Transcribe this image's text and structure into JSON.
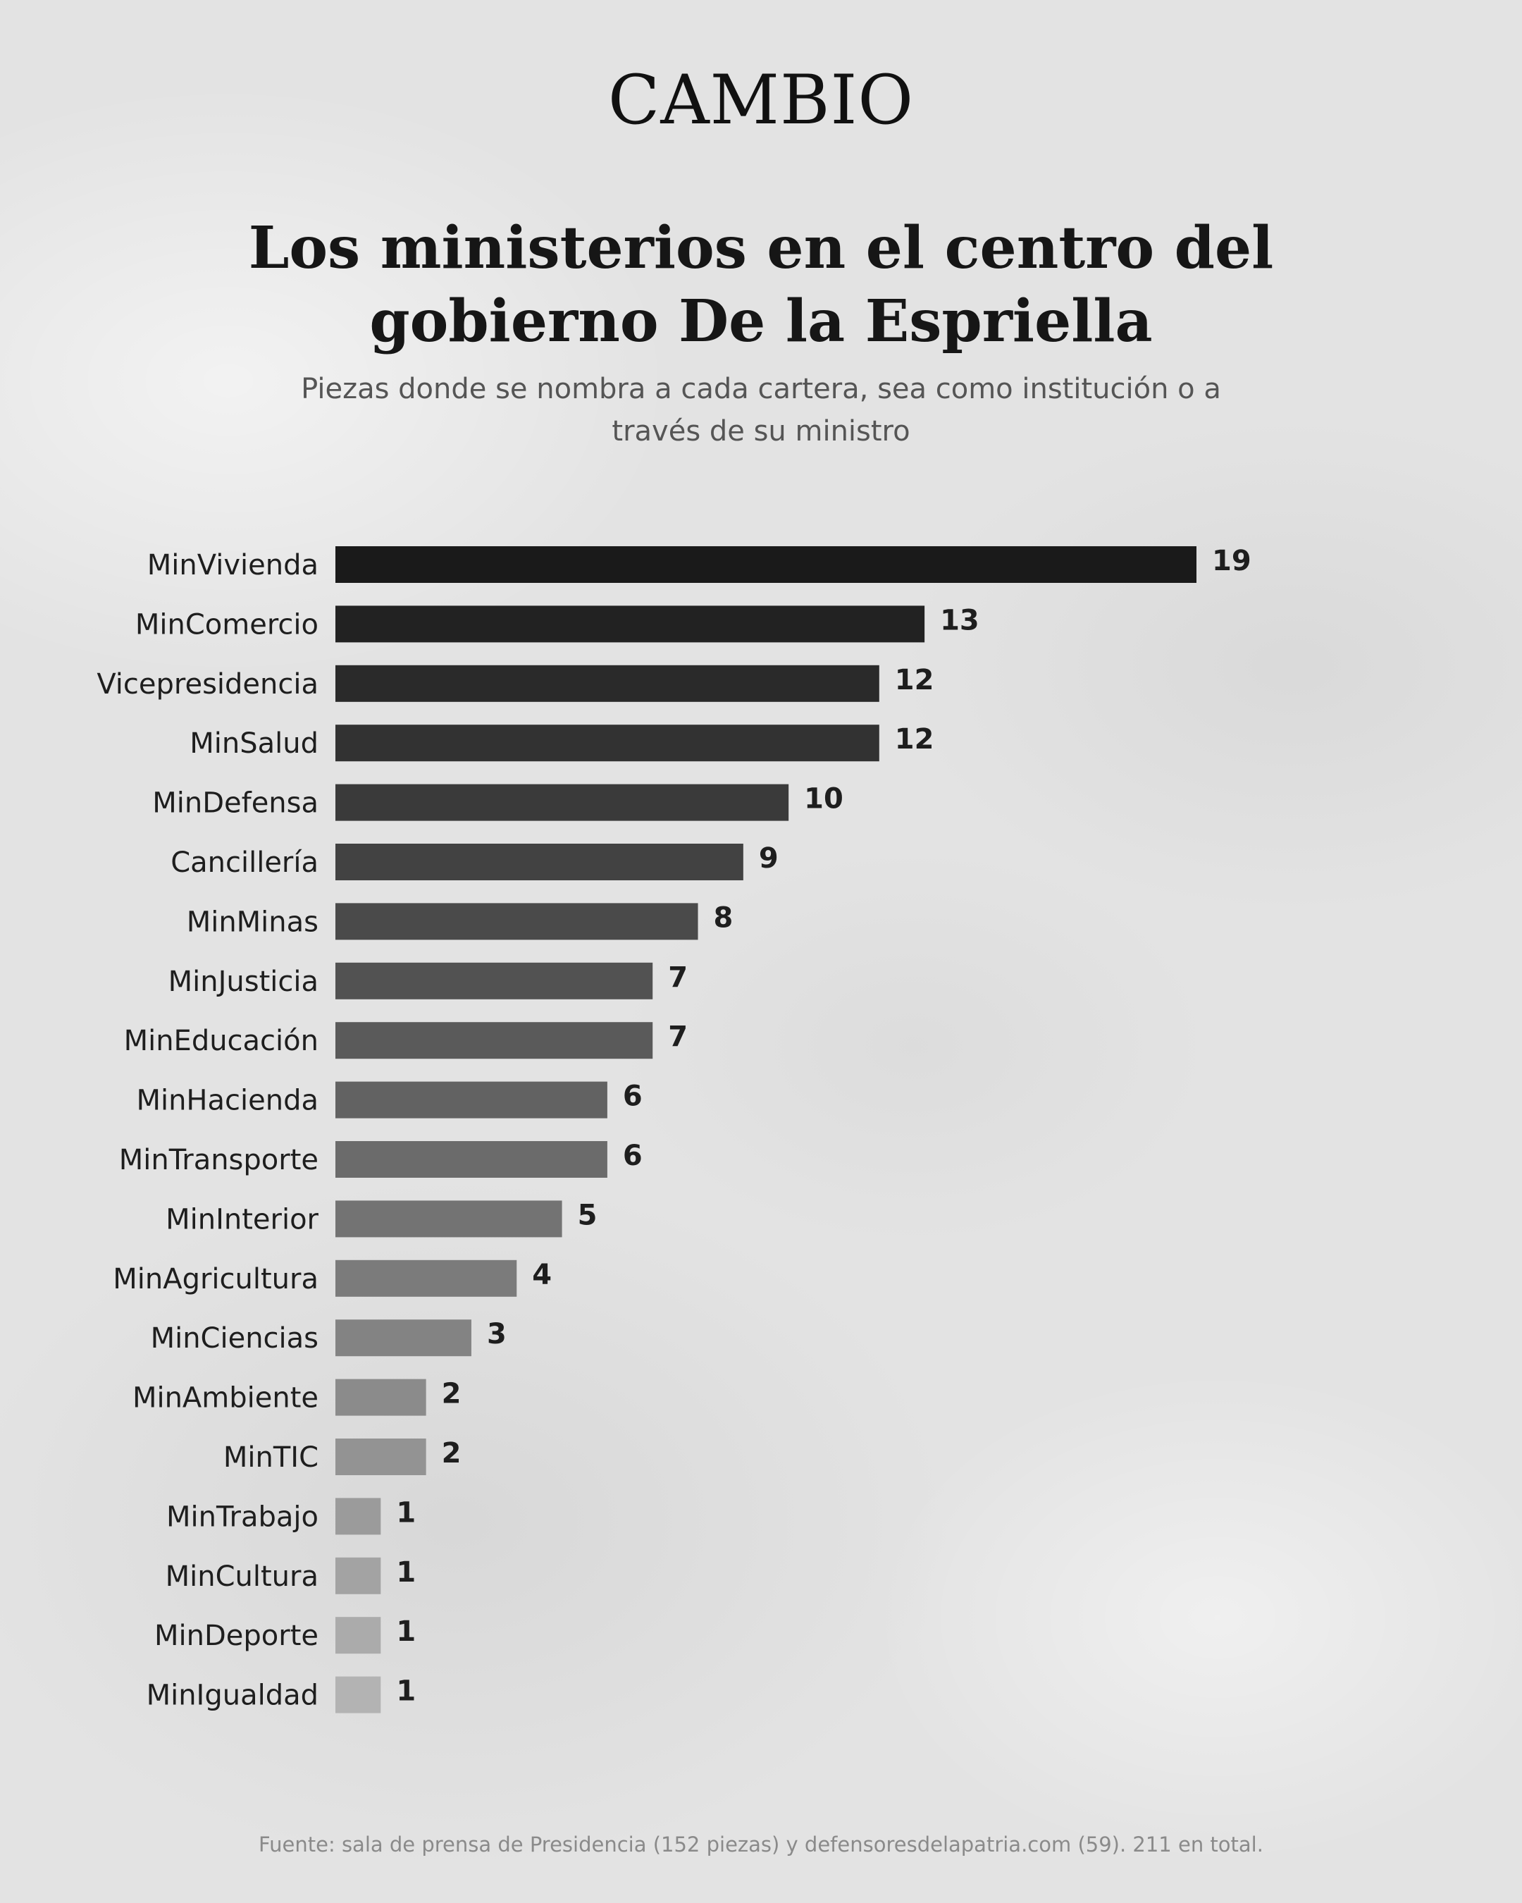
{
  "brand": {
    "logo_text": "CAMBIO"
  },
  "chart_data": {
    "type": "bar",
    "orientation": "horizontal",
    "title": "Los ministerios en el centro del gobierno De la Espriella",
    "title_lines": [
      "Los ministerios en el centro del",
      "gobierno De la Espriella"
    ],
    "subtitle": "Piezas donde se nombra a cada cartera, sea como institución o a través de su ministro",
    "subtitle_lines": [
      "Piezas donde se nombra a cada cartera, sea como institución o a",
      "través de su ministro"
    ],
    "categories": [
      "MinVivienda",
      "MinComercio",
      "Vicepresidencia",
      "MinSalud",
      "MinDefensa",
      "Cancillería",
      "MinMinas",
      "MinJusticia",
      "MinEducación",
      "MinHacienda",
      "MinTransporte",
      "MinInterior",
      "MinAgricultura",
      "MinCiencias",
      "MinAmbiente",
      "MinTIC",
      "MinTrabajo",
      "MinCultura",
      "MinDeporte",
      "MinIgualdad"
    ],
    "values": [
      19,
      13,
      12,
      12,
      10,
      9,
      8,
      7,
      7,
      6,
      6,
      5,
      4,
      3,
      2,
      2,
      1,
      1,
      1,
      1
    ],
    "xlim": [
      0,
      19
    ],
    "grid": false,
    "legend": "none",
    "data_labels": true,
    "colors": {
      "darkest": "#1a1a1a",
      "lightest": "#b3b3b3"
    },
    "source": "Fuente: sala de prensa de Presidencia (152 piezas) y defensoresdelapatria.com (59). 211 en total."
  }
}
